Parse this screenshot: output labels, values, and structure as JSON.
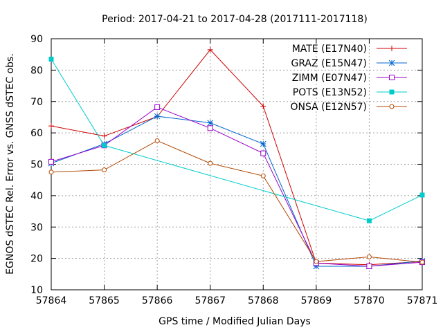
{
  "chart_data": {
    "type": "line",
    "title": "Period: 2017-04-21 to 2017-04-28 (2017111-2017118)",
    "xlabel": "GPS time / Modified Julian Days",
    "ylabel": "EGNOS dSTEC Rel. Error vs. GNSS dSTEC obs.",
    "x": [
      57864,
      57865,
      57866,
      57867,
      57868,
      57869,
      57870,
      57871
    ],
    "xlim": [
      57864,
      57871
    ],
    "ylim": [
      10,
      90
    ],
    "yticks": [
      10,
      20,
      30,
      40,
      50,
      60,
      70,
      80,
      90
    ],
    "grid": true,
    "legend_position": "top-right",
    "series": [
      {
        "name": "MATE (E17N40)",
        "color": "#cc0000",
        "marker": "plus",
        "values": [
          62.2,
          59.0,
          65.2,
          86.5,
          68.5,
          18.5,
          18.0,
          19.0
        ]
      },
      {
        "name": "GRAZ (E15N47)",
        "color": "#0066cc",
        "marker": "star",
        "values": [
          50.3,
          56.5,
          65.3,
          63.2,
          56.5,
          17.5,
          17.5,
          19.2
        ]
      },
      {
        "name": "ZIMM (E07N47)",
        "color": "#9900cc",
        "marker": "open-square",
        "values": [
          50.8,
          56.0,
          68.2,
          61.5,
          53.5,
          18.5,
          17.5,
          18.8
        ]
      },
      {
        "name": "POTS (E13N52)",
        "color": "#00cccc",
        "marker": "filled-square",
        "values": [
          83.5,
          56.0,
          null,
          null,
          null,
          null,
          32.0,
          40.2
        ]
      },
      {
        "name": "ONSA (E12N57)",
        "color": "#b34700",
        "marker": "open-circle",
        "values": [
          47.5,
          48.2,
          57.5,
          50.3,
          46.3,
          19.0,
          20.5,
          18.8
        ]
      }
    ]
  }
}
